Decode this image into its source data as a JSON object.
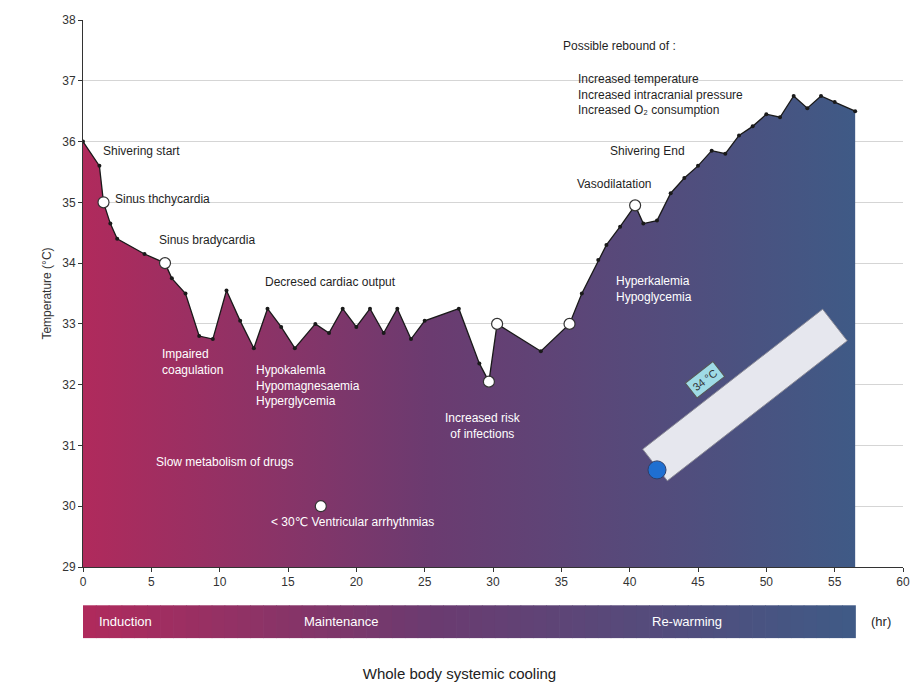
{
  "chart_data": {
    "type": "line",
    "title": "Whole body systemic cooling",
    "y_label": "Temperature (°C)",
    "x": [
      0,
      1.2,
      1.5,
      2,
      2.5,
      4.5,
      6,
      6.5,
      7.5,
      8.5,
      9.5,
      10.5,
      11.5,
      12.5,
      13.5,
      14.5,
      15.5,
      17,
      18,
      19,
      20,
      21,
      22,
      23,
      24,
      25,
      27.5,
      29,
      29.7,
      30.3,
      33.5,
      35.6,
      36.5,
      37.7,
      38.3,
      39.3,
      40.4,
      41,
      42,
      43,
      44,
      45,
      46,
      47,
      48,
      49,
      50,
      51,
      52,
      53,
      54,
      55,
      56.5
    ],
    "values": [
      36,
      35.6,
      35,
      34.65,
      34.4,
      34.15,
      34,
      33.75,
      33.5,
      32.8,
      32.75,
      33.55,
      33.05,
      32.6,
      33.25,
      32.95,
      32.6,
      33,
      32.85,
      33.25,
      32.95,
      33.25,
      32.85,
      33.25,
      32.75,
      33.05,
      33.25,
      32.35,
      32.05,
      33,
      32.55,
      33,
      33.5,
      34.05,
      34.3,
      34.6,
      34.95,
      34.65,
      34.7,
      35.15,
      35.4,
      35.6,
      35.85,
      35.8,
      36.1,
      36.25,
      36.45,
      36.4,
      36.75,
      36.55,
      36.75,
      36.65,
      36.5
    ],
    "color": "#1a1a1a",
    "marker": "circle",
    "highlighted_points": {
      "x": [
        1.5,
        6,
        17.4,
        29.7,
        30.3,
        35.6,
        40.4
      ],
      "y": [
        35,
        34,
        30,
        32.05,
        33,
        33,
        34.95
      ]
    },
    "xlim": [
      0,
      60
    ],
    "xticks": [
      0,
      5,
      10,
      15,
      20,
      25,
      30,
      35,
      40,
      45,
      50,
      55,
      60
    ],
    "ylim": [
      29,
      38
    ],
    "yticks": [
      29,
      30,
      31,
      32,
      33,
      34,
      35,
      36,
      37,
      38
    ],
    "grid": true,
    "annotations": [
      {
        "text": [
          "Shivering start"
        ]
      },
      {
        "text": [
          "Sinus thchycardia"
        ]
      },
      {
        "text": [
          "Sinus bradycardia"
        ]
      },
      {
        "text": [
          "Decresed cardiac output"
        ]
      },
      {
        "text": [
          "Impaired",
          "coagulation"
        ]
      },
      {
        "text": [
          "Hypokalemla",
          "Hypomagnesaemia",
          "Hyperglycemia"
        ]
      },
      {
        "text": [
          "Slow metabolism of drugs"
        ]
      },
      {
        "text": [
          "< 30℃ Ventricular arrhythmias"
        ]
      },
      {
        "text": [
          "Increased risk",
          "of infections"
        ]
      },
      {
        "text": [
          "Hyperkalemia",
          "Hypoglycemia"
        ]
      },
      {
        "text": [
          "Vasodilatation"
        ]
      },
      {
        "text": [
          "Shivering End"
        ]
      },
      {
        "text": [
          "Possible rebound of :"
        ]
      },
      {
        "text": [
          "Increased temperature",
          "Increased intracranial pressure",
          "Increased O₂ consumption"
        ]
      }
    ],
    "phases": [
      "Induction",
      "Maintenance",
      "Re-warming"
    ],
    "phase_unit": "(hr)",
    "thermometer_label": "34 °C"
  }
}
